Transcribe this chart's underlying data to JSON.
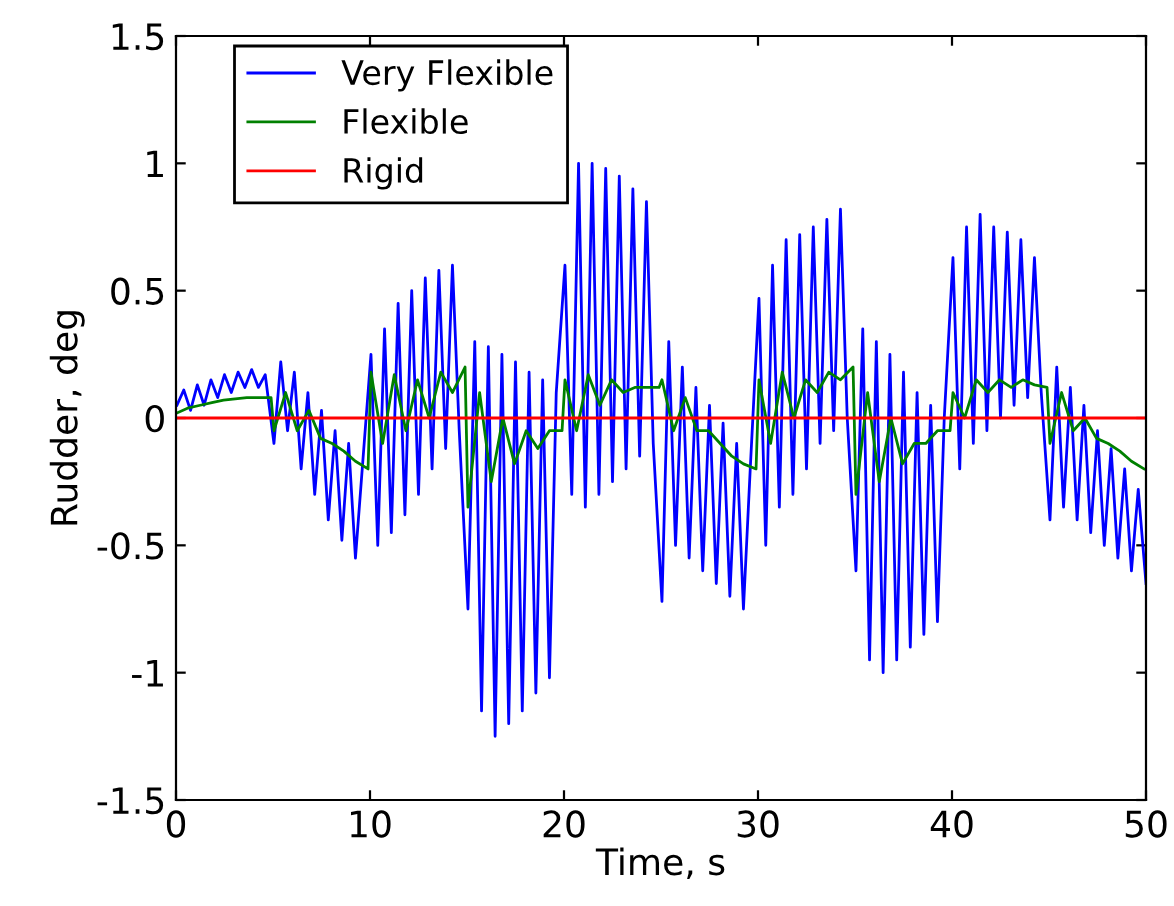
{
  "chart_data": {
    "type": "line",
    "xlabel": "Time, s",
    "ylabel": "Rudder, deg",
    "xlim": [
      0,
      50
    ],
    "ylim": [
      -1.5,
      1.5
    ],
    "xticks": [
      0,
      10,
      20,
      30,
      40,
      50
    ],
    "yticks": [
      -1.5,
      -1,
      -0.5,
      0,
      0.5,
      1,
      1.5
    ],
    "legend": "top left",
    "grid": false,
    "line_style": "solid",
    "series": [
      {
        "name": "Very Flexible",
        "color": "#0000ff",
        "x": [
          0.05,
          0.4,
          0.75,
          1.1,
          1.45,
          1.8,
          2.15,
          2.5,
          2.85,
          3.2,
          3.55,
          3.9,
          4.25,
          4.6,
          5.05,
          5.4,
          5.75,
          6.1,
          6.45,
          6.8,
          7.15,
          7.5,
          7.85,
          8.2,
          8.55,
          8.9,
          9.25,
          9.6,
          10.05,
          10.4,
          10.75,
          11.1,
          11.45,
          11.8,
          12.15,
          12.5,
          12.85,
          13.2,
          13.55,
          13.9,
          14.25,
          14.6,
          15.05,
          15.4,
          15.75,
          16.1,
          16.45,
          16.8,
          17.15,
          17.5,
          17.85,
          18.2,
          18.55,
          18.9,
          19.25,
          19.6,
          20.05,
          20.4,
          20.75,
          21.1,
          21.45,
          21.8,
          22.15,
          22.5,
          22.85,
          23.2,
          23.55,
          23.9,
          24.25,
          24.6,
          25.05,
          25.4,
          25.75,
          26.1,
          26.45,
          26.8,
          27.15,
          27.5,
          27.85,
          28.2,
          28.55,
          28.9,
          29.25,
          29.6,
          30.05,
          30.4,
          30.75,
          31.1,
          31.45,
          31.8,
          32.15,
          32.5,
          32.85,
          33.2,
          33.55,
          33.9,
          34.25,
          34.6,
          35.05,
          35.4,
          35.75,
          36.1,
          36.45,
          36.8,
          37.15,
          37.5,
          37.85,
          38.2,
          38.55,
          38.9,
          39.25,
          39.6,
          40.05,
          40.4,
          40.75,
          41.1,
          41.45,
          41.8,
          42.15,
          42.5,
          42.85,
          43.2,
          43.55,
          43.9,
          44.25,
          44.6,
          45.05,
          45.4,
          45.75,
          46.1,
          46.45,
          46.8,
          47.15,
          47.5,
          47.85,
          48.2,
          48.55,
          48.9,
          49.25,
          49.6,
          50
        ],
        "values": [
          0.05,
          0.11,
          0.03,
          0.13,
          0.05,
          0.15,
          0.08,
          0.17,
          0.1,
          0.18,
          0.12,
          0.19,
          0.12,
          0.17,
          -0.1,
          0.22,
          -0.05,
          0.18,
          -0.2,
          0.1,
          -0.3,
          0.03,
          -0.4,
          -0.05,
          -0.48,
          -0.1,
          -0.55,
          -0.2,
          0.25,
          -0.5,
          0.35,
          -0.45,
          0.45,
          -0.38,
          0.5,
          -0.3,
          0.55,
          -0.2,
          0.58,
          -0.12,
          0.6,
          -0.05,
          -0.75,
          0.3,
          -1.15,
          0.28,
          -1.25,
          0.25,
          -1.2,
          0.22,
          -1.15,
          0.18,
          -1.08,
          0.15,
          -1.02,
          0.1,
          0.6,
          -0.3,
          1.0,
          -0.35,
          1.0,
          -0.3,
          0.98,
          -0.25,
          0.95,
          -0.2,
          0.9,
          -0.15,
          0.85,
          -0.1,
          -0.72,
          0.3,
          -0.5,
          0.2,
          -0.55,
          0.12,
          -0.6,
          0.05,
          -0.65,
          -0.02,
          -0.7,
          -0.1,
          -0.75,
          -0.2,
          0.47,
          -0.5,
          0.6,
          -0.35,
          0.7,
          -0.3,
          0.72,
          -0.2,
          0.75,
          -0.1,
          0.78,
          -0.05,
          0.82,
          0.0,
          -0.6,
          0.35,
          -0.95,
          0.3,
          -1.0,
          0.25,
          -0.95,
          0.18,
          -0.9,
          0.1,
          -0.85,
          0.05,
          -0.8,
          0.0,
          0.63,
          -0.2,
          0.75,
          -0.1,
          0.8,
          -0.05,
          0.75,
          0.0,
          0.73,
          0.05,
          0.7,
          0.08,
          0.63,
          0.1,
          -0.4,
          0.2,
          -0.35,
          0.12,
          -0.4,
          0.05,
          -0.45,
          -0.05,
          -0.5,
          -0.12,
          -0.55,
          -0.2,
          -0.6,
          -0.28,
          -0.65
        ]
      },
      {
        "name": "Flexible",
        "color": "#008000",
        "x": [
          0.05,
          0.65,
          1.25,
          1.85,
          2.45,
          3.05,
          3.65,
          4.25,
          4.9,
          5.05,
          5.65,
          6.25,
          6.85,
          7.45,
          8.05,
          8.65,
          9.25,
          9.9,
          10.05,
          10.65,
          11.25,
          11.85,
          12.45,
          13.05,
          13.65,
          14.25,
          14.9,
          15.05,
          15.65,
          16.25,
          16.85,
          17.45,
          18.05,
          18.65,
          19.25,
          19.9,
          20.05,
          20.65,
          21.25,
          21.85,
          22.45,
          23.05,
          23.65,
          24.25,
          24.9,
          25.05,
          25.65,
          26.25,
          26.85,
          27.45,
          28.05,
          28.65,
          29.25,
          29.9,
          30.05,
          30.65,
          31.25,
          31.85,
          32.45,
          33.05,
          33.65,
          34.25,
          34.9,
          35.05,
          35.65,
          36.25,
          36.85,
          37.45,
          38.05,
          38.65,
          39.25,
          39.9,
          40.05,
          40.65,
          41.25,
          41.85,
          42.45,
          43.05,
          43.65,
          44.25,
          44.9,
          45.05,
          45.65,
          46.25,
          46.85,
          47.45,
          48.05,
          48.65,
          49.25,
          49.9
        ],
        "values": [
          0.02,
          0.04,
          0.05,
          0.06,
          0.07,
          0.075,
          0.08,
          0.08,
          0.08,
          -0.05,
          0.1,
          -0.05,
          0.03,
          -0.08,
          -0.1,
          -0.13,
          -0.17,
          -0.2,
          0.18,
          -0.1,
          0.17,
          -0.05,
          0.15,
          0.0,
          0.18,
          0.1,
          0.2,
          -0.35,
          0.1,
          -0.25,
          0.0,
          -0.18,
          -0.05,
          -0.12,
          -0.05,
          -0.05,
          0.15,
          -0.05,
          0.17,
          0.05,
          0.15,
          0.1,
          0.12,
          0.12,
          0.12,
          0.15,
          -0.05,
          0.08,
          -0.05,
          -0.05,
          -0.1,
          -0.15,
          -0.18,
          -0.2,
          0.15,
          -0.1,
          0.18,
          0.0,
          0.15,
          0.1,
          0.18,
          0.15,
          0.2,
          -0.3,
          0.1,
          -0.25,
          0.0,
          -0.18,
          -0.1,
          -0.1,
          -0.05,
          -0.05,
          0.1,
          0.0,
          0.15,
          0.1,
          0.15,
          0.12,
          0.15,
          0.13,
          0.12,
          -0.1,
          0.1,
          -0.05,
          0.0,
          -0.08,
          -0.1,
          -0.13,
          -0.17,
          -0.2
        ]
      },
      {
        "name": "Rigid",
        "color": "#ff0000",
        "x": [
          0,
          50
        ],
        "values": [
          0,
          0
        ]
      }
    ]
  }
}
